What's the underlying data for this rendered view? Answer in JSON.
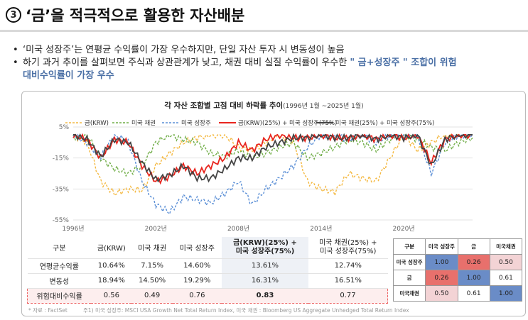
{
  "header": {
    "number": "3",
    "title": "‘금’을 적극적으로 활용한 자산배분"
  },
  "bullets": [
    {
      "text": "‘미국 성장주’는 연평균 수익률이 가장 우수하지만, 단일 자산 투자 시 변동성이 높음"
    },
    {
      "text": "하기 과거 추이를 살펴보면 주식과 상관관계가 낮고, 채권 대비 실질 수익률이 우수한 ",
      "highlight1": "\" 금+성장주 \"  조합이 위험",
      "highlight2": "대비수익률이 가장 우수"
    }
  ],
  "chart_data": {
    "type": "line",
    "title": "각 자산 조합별 고점 대비 하락률 추이",
    "subtitle": "(1996년 1월 ~2025년 1월)",
    "ylim": [
      -55,
      5
    ],
    "yticks": [
      "5%",
      "-15%",
      "-35%",
      "-55%"
    ],
    "yticks_values": [
      5,
      -15,
      -35,
      -55
    ],
    "xticks": [
      "1996년",
      "2002년",
      "2008년",
      "2014년",
      "2020년"
    ],
    "xticks_values": [
      1996,
      2002,
      2008,
      2014,
      2020
    ],
    "xlim": [
      1996,
      2025
    ],
    "grid": true,
    "legend": "top",
    "x": [
      1996,
      1997,
      1998,
      1999,
      2000,
      2001,
      2002,
      2003,
      2004,
      2005,
      2006,
      2007,
      2008,
      2009,
      2010,
      2011,
      2012,
      2013,
      2014,
      2015,
      2016,
      2017,
      2018,
      2019,
      2020,
      2021,
      2022,
      2023,
      2024,
      2025
    ],
    "series": [
      {
        "name": "금(KRW)",
        "color": "#f4b942",
        "dash": true,
        "values": [
          0,
          -5,
          -30,
          -38,
          -35,
          -36,
          -20,
          -12,
          -5,
          -2,
          0,
          0,
          -8,
          -10,
          -5,
          0,
          -5,
          -30,
          -35,
          -37,
          -25,
          -28,
          -30,
          -15,
          0,
          -10,
          -5,
          0,
          0,
          0
        ]
      },
      {
        "name": "미국 채권",
        "color": "#70ad47",
        "dash": true,
        "values": [
          -2,
          0,
          -15,
          -22,
          -25,
          -20,
          -5,
          0,
          -3,
          -5,
          -12,
          -14,
          -10,
          -15,
          -12,
          -8,
          -5,
          -15,
          -12,
          -8,
          -3,
          -5,
          -10,
          -3,
          0,
          -3,
          -8,
          -10,
          -5,
          -2
        ]
      },
      {
        "name": "미국 성장주",
        "color": "#5b8fd6",
        "dash": true,
        "values": [
          0,
          -5,
          -15,
          0,
          -5,
          -30,
          -45,
          -50,
          -40,
          -42,
          -44,
          -38,
          -30,
          -45,
          -35,
          -28,
          -20,
          -8,
          0,
          0,
          -3,
          0,
          -5,
          0,
          0,
          0,
          -25,
          -5,
          0,
          0
        ]
      },
      {
        "name": "금(KRW)(25%) + 미국 성장주(75%)",
        "color": "#e8251e",
        "dash": false,
        "values": [
          0,
          -3,
          -15,
          -3,
          -5,
          -20,
          -30,
          -27,
          -20,
          -25,
          -20,
          -15,
          -5,
          -10,
          -3,
          0,
          -2,
          -2,
          0,
          -2,
          -2,
          0,
          -3,
          0,
          -2,
          0,
          -18,
          -3,
          0,
          0
        ]
      },
      {
        "name": "미국 채권(25%) + 미국 성장주(75%)",
        "color": "#444444",
        "dash": false,
        "values": [
          0,
          -3,
          -14,
          -3,
          -5,
          -18,
          -29,
          -26,
          -20,
          -28,
          -28,
          -22,
          -15,
          -15,
          -8,
          -5,
          -2,
          -2,
          0,
          -2,
          -2,
          0,
          -3,
          0,
          -2,
          0,
          -20,
          -3,
          0,
          0
        ]
      }
    ]
  },
  "table": {
    "headers": [
      "구분",
      "금(KRW)",
      "미국 채권",
      "미국 성장주",
      "금(KRW)(25%) +\n미국 성장주(75%)",
      "미국 채권(25%) +\n미국 성장주(75%)"
    ],
    "rows": [
      [
        "연평균수익률",
        "10.64%",
        "7.15%",
        "14.60%",
        "13.61%",
        "12.74%"
      ],
      [
        "변동성",
        "18.94%",
        "14.50%",
        "19.29%",
        "16.31%",
        "16.51%"
      ],
      [
        "위험대비수익률",
        "0.56",
        "0.49",
        "0.76",
        "0.83",
        "0.77"
      ]
    ]
  },
  "correlation": {
    "headers": [
      "구분",
      "미국 성장주",
      "금",
      "미국채권"
    ],
    "rows": [
      [
        "미국 성장주",
        "1.00",
        "0.26",
        "0.50"
      ],
      [
        "금",
        "0.26",
        "1.00",
        "0.61"
      ],
      [
        "미국채권",
        "0.50",
        "0.61",
        "1.00"
      ]
    ],
    "colors": {
      "1.00": "#6a8cc7",
      "0.26": "#e8706c",
      "0.50": "#f3d3d5",
      "0.61": "#ffffff"
    }
  },
  "footer": {
    "source": "* 자료 : FactSet",
    "note": "주1) 미국 성장주: MSCI USA Growth Net Total Return Index, 미국 채권 : Bloomberg US Aggregate Unhedged Total Return Index"
  }
}
